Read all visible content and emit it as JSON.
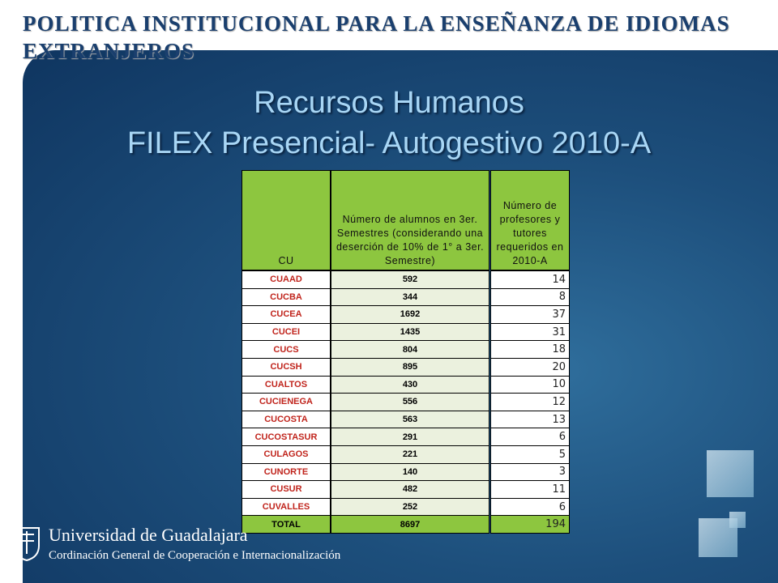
{
  "header": {
    "title_lines": [
      "POLITICA INSTITUCIONAL PARA LA ENSEÑANZA DE IDIOMAS",
      "EXTRANJEROS"
    ]
  },
  "subtitle": {
    "lines": [
      "Recursos Humanos",
      "FILEX Presencial- Autogestivo 2010-A"
    ]
  },
  "table": {
    "columns": [
      "CU",
      "Número de alumnos en 3er. Semestres (considerando una deserción de 10% de 1° a 3er. Semestre)",
      "Número de profesores y tutores requeridos en 2010-A"
    ],
    "rows": [
      [
        "CUAAD",
        592,
        14
      ],
      [
        "CUCBA",
        344,
        8
      ],
      [
        "CUCEA",
        1692,
        37
      ],
      [
        "CUCEI",
        1435,
        31
      ],
      [
        "CUCS",
        804,
        18
      ],
      [
        "CUCSH",
        895,
        20
      ],
      [
        "CUALTOS",
        430,
        10
      ],
      [
        "CUCIENEGA",
        556,
        12
      ],
      [
        "CUCOSTA",
        563,
        13
      ],
      [
        "CUCOSTASUR",
        291,
        6
      ],
      [
        "CULAGOS",
        221,
        5
      ],
      [
        "CUNORTE",
        140,
        3
      ],
      [
        "CUSUR",
        482,
        11
      ],
      [
        "CUVALLES",
        252,
        6
      ]
    ],
    "total": [
      "TOTAL",
      8697,
      194
    ]
  },
  "footer": {
    "university": "Universidad de Guadalajara",
    "office": "Cordinación General de Cooperación e Internacionalización"
  }
}
